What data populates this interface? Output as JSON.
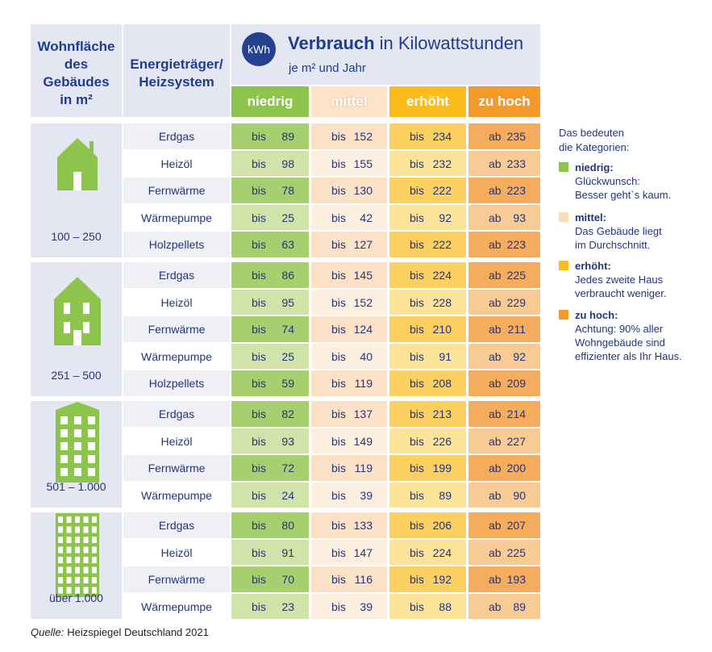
{
  "header": {
    "area": [
      "Wohnfläche",
      "des",
      "Gebäudes",
      "in m²"
    ],
    "carrier": [
      "Energieträger/",
      "Heizsystem"
    ],
    "badge": "kWh",
    "title_bold": "Verbrauch",
    "title_rest": "in Kilowattstunden",
    "subtitle": "je m² und Jahr"
  },
  "categories": [
    {
      "name": "niedrig",
      "color": "#8dc44b",
      "dark": "#a8cf6f",
      "light": "#d0e4aa"
    },
    {
      "name": "mittel",
      "color": "#fde3c8",
      "dark": "#fbe2c7",
      "light": "#fdefdf"
    },
    {
      "name": "erhöht",
      "color": "#fbbd1c",
      "dark": "#fbd060",
      "light": "#fde39a"
    },
    {
      "name": "zu hoch",
      "color": "#f39a2b",
      "dark": "#f5ac5c",
      "light": "#f9cb94"
    }
  ],
  "groups": [
    {
      "label": "100 – 250",
      "rows": [
        {
          "carrier": "Erdgas",
          "cells": [
            [
              "bis",
              89
            ],
            [
              "bis",
              152
            ],
            [
              "bis",
              234
            ],
            [
              "ab",
              235
            ]
          ]
        },
        {
          "carrier": "Heizöl",
          "cells": [
            [
              "bis",
              98
            ],
            [
              "bis",
              155
            ],
            [
              "bis",
              232
            ],
            [
              "ab",
              233
            ]
          ]
        },
        {
          "carrier": "Fernwärme",
          "cells": [
            [
              "bis",
              78
            ],
            [
              "bis",
              130
            ],
            [
              "bis",
              222
            ],
            [
              "ab",
              223
            ]
          ]
        },
        {
          "carrier": "Wärmepumpe",
          "cells": [
            [
              "bis",
              25
            ],
            [
              "bis",
              42
            ],
            [
              "bis",
              92
            ],
            [
              "ab",
              93
            ]
          ]
        },
        {
          "carrier": "Holzpellets",
          "cells": [
            [
              "bis",
              63
            ],
            [
              "bis",
              127
            ],
            [
              "bis",
              222
            ],
            [
              "ab",
              223
            ]
          ]
        }
      ]
    },
    {
      "label": "251 – 500",
      "rows": [
        {
          "carrier": "Erdgas",
          "cells": [
            [
              "bis",
              86
            ],
            [
              "bis",
              145
            ],
            [
              "bis",
              224
            ],
            [
              "ab",
              225
            ]
          ]
        },
        {
          "carrier": "Heizöl",
          "cells": [
            [
              "bis",
              95
            ],
            [
              "bis",
              152
            ],
            [
              "bis",
              228
            ],
            [
              "ab",
              229
            ]
          ]
        },
        {
          "carrier": "Fernwärme",
          "cells": [
            [
              "bis",
              74
            ],
            [
              "bis",
              124
            ],
            [
              "bis",
              210
            ],
            [
              "ab",
              211
            ]
          ]
        },
        {
          "carrier": "Wärmepumpe",
          "cells": [
            [
              "bis",
              25
            ],
            [
              "bis",
              40
            ],
            [
              "bis",
              91
            ],
            [
              "ab",
              92
            ]
          ]
        },
        {
          "carrier": "Holzpellets",
          "cells": [
            [
              "bis",
              59
            ],
            [
              "bis",
              119
            ],
            [
              "bis",
              208
            ],
            [
              "ab",
              209
            ]
          ]
        }
      ]
    },
    {
      "label": "501 – 1.000",
      "rows": [
        {
          "carrier": "Erdgas",
          "cells": [
            [
              "bis",
              82
            ],
            [
              "bis",
              137
            ],
            [
              "bis",
              213
            ],
            [
              "ab",
              214
            ]
          ]
        },
        {
          "carrier": "Heizöl",
          "cells": [
            [
              "bis",
              93
            ],
            [
              "bis",
              149
            ],
            [
              "bis",
              226
            ],
            [
              "ab",
              227
            ]
          ]
        },
        {
          "carrier": "Fernwärme",
          "cells": [
            [
              "bis",
              72
            ],
            [
              "bis",
              119
            ],
            [
              "bis",
              199
            ],
            [
              "ab",
              200
            ]
          ]
        },
        {
          "carrier": "Wärmepumpe",
          "cells": [
            [
              "bis",
              24
            ],
            [
              "bis",
              39
            ],
            [
              "bis",
              89
            ],
            [
              "ab",
              90
            ]
          ]
        }
      ]
    },
    {
      "label": "über 1.000",
      "rows": [
        {
          "carrier": "Erdgas",
          "cells": [
            [
              "bis",
              80
            ],
            [
              "bis",
              133
            ],
            [
              "bis",
              206
            ],
            [
              "ab",
              207
            ]
          ]
        },
        {
          "carrier": "Heizöl",
          "cells": [
            [
              "bis",
              91
            ],
            [
              "bis",
              147
            ],
            [
              "bis",
              224
            ],
            [
              "ab",
              225
            ]
          ]
        },
        {
          "carrier": "Fernwärme",
          "cells": [
            [
              "bis",
              70
            ],
            [
              "bis",
              116
            ],
            [
              "bis",
              192
            ],
            [
              "ab",
              193
            ]
          ]
        },
        {
          "carrier": "Wärmepumpe",
          "cells": [
            [
              "bis",
              23
            ],
            [
              "bis",
              39
            ],
            [
              "bis",
              88
            ],
            [
              "ab",
              89
            ]
          ]
        }
      ]
    }
  ],
  "legend": {
    "intro": [
      "Das bedeuten",
      "die Kategorien:"
    ],
    "items": [
      {
        "name": "niedrig:",
        "text": [
          "Glückwunsch:",
          "Besser geht`s kaum."
        ]
      },
      {
        "name": "mittel:",
        "text": [
          "Das Gebäude liegt",
          "im Durchschnitt."
        ]
      },
      {
        "name": "erhöht:",
        "text": [
          "Jedes zweite Haus",
          "verbraucht weniger."
        ]
      },
      {
        "name": "zu hoch:",
        "text": [
          "Achtung: 90% aller",
          "Wohngebäude sind",
          "effizienter als Ihr Haus."
        ]
      }
    ]
  },
  "source": {
    "label": "Quelle:",
    "text": "Heizspiegel Deutschland 2021"
  }
}
